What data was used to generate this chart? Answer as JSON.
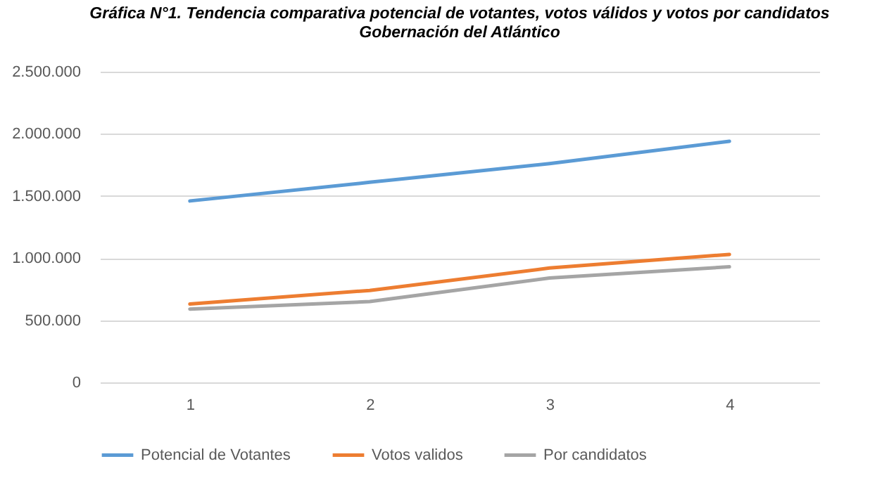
{
  "chart_data": {
    "type": "line",
    "title": "Gráfica N°1. Tendencia comparativa potencial de votantes, votos válidos y votos por candidatos",
    "subtitle": "Gobernación del Atlántico",
    "categories": [
      "1",
      "2",
      "3",
      "4"
    ],
    "series": [
      {
        "name": "Potencial de Votantes",
        "color": "#5b9bd5",
        "values": [
          1460000,
          1610000,
          1760000,
          1940000
        ]
      },
      {
        "name": "Votos validos",
        "color": "#ed7d31",
        "values": [
          630000,
          740000,
          920000,
          1030000
        ]
      },
      {
        "name": "Por candidatos",
        "color": "#a5a5a5",
        "values": [
          590000,
          650000,
          840000,
          930000
        ]
      }
    ],
    "ylim": [
      0,
      2500000
    ],
    "yticks": [
      {
        "value": 0,
        "label": "0"
      },
      {
        "value": 500000,
        "label": "500.000"
      },
      {
        "value": 1000000,
        "label": "1.000.000"
      },
      {
        "value": 1500000,
        "label": "1.500.000"
      },
      {
        "value": 2000000,
        "label": "2.000.000"
      },
      {
        "value": 2500000,
        "label": "2.500.000"
      }
    ],
    "grid": "y",
    "legend": "bottom",
    "marker": "none",
    "line_style": "solid"
  }
}
